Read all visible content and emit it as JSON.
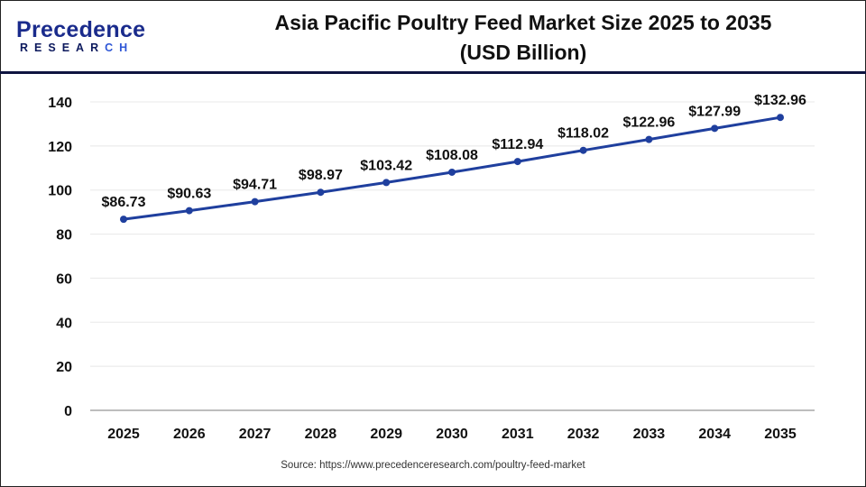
{
  "header": {
    "logo": {
      "line1": "Precedence",
      "line2_main": "RESEAR",
      "line2_accent": "CH"
    },
    "title_line1": "Asia Pacific Poultry Feed Market Size 2025 to 2035",
    "title_line2": "(USD Billion)"
  },
  "footer": {
    "source": "Source: https://www.precedenceresearch.com/poultry-feed-market"
  },
  "colors": {
    "line": "#1f3f9e",
    "divider": "#0f1440",
    "grid": "#e8e8e8",
    "axis": "#bdbdbd"
  },
  "chart_data": {
    "type": "line",
    "title": "Asia Pacific Poultry Feed Market Size 2025 to 2035 (USD Billion)",
    "xlabel": "",
    "ylabel": "",
    "categories": [
      "2025",
      "2026",
      "2027",
      "2028",
      "2029",
      "2030",
      "2031",
      "2032",
      "2033",
      "2034",
      "2035"
    ],
    "series": [
      {
        "name": "Market Size (USD Billion)",
        "values": [
          86.73,
          90.63,
          94.71,
          98.97,
          103.42,
          108.08,
          112.94,
          118.02,
          122.96,
          127.99,
          132.96
        ]
      }
    ],
    "data_labels": [
      "$86.73",
      "$90.63",
      "$94.71",
      "$98.97",
      "$103.42",
      "$108.08",
      "$112.94",
      "$118.02",
      "$122.96",
      "$127.99",
      "$132.96"
    ],
    "yticks": [
      0,
      20,
      40,
      60,
      80,
      100,
      120,
      140
    ],
    "ylim": [
      0,
      140
    ],
    "grid": true,
    "legend": "none"
  }
}
